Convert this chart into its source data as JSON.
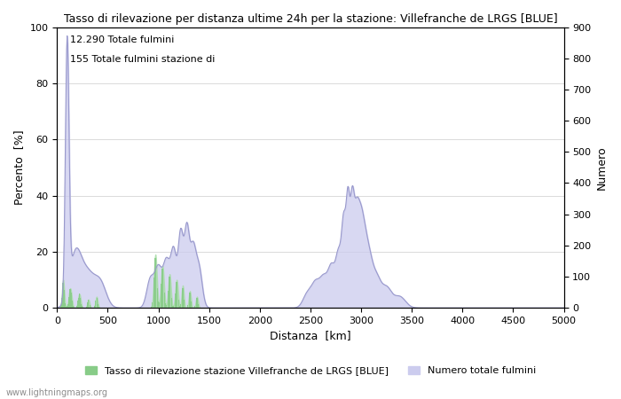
{
  "title": "Tasso di rilevazione per distanza ultime 24h per la stazione: Villefranche de LRGS [BLUE]",
  "xlabel": "Distanza  [km]",
  "ylabel_left": "Percento  [%]",
  "ylabel_right": "Numero",
  "annotation_line1": "12.290 Totale fulmini",
  "annotation_line2": "155 Totale fulmini stazione di",
  "legend_green": "Tasso di rilevazione stazione Villefranche de LRGS [BLUE]",
  "legend_blue": "Numero totale fulmini",
  "watermark": "www.lightningmaps.org",
  "xlim": [
    0,
    5000
  ],
  "ylim_left": [
    0,
    100
  ],
  "ylim_right": [
    0,
    900
  ],
  "xticks": [
    0,
    500,
    1000,
    1500,
    2000,
    2500,
    3000,
    3500,
    4000,
    4500,
    5000
  ],
  "yticks_left": [
    0,
    20,
    40,
    60,
    80,
    100
  ],
  "yticks_right": [
    0,
    100,
    200,
    300,
    400,
    500,
    600,
    700,
    800,
    900
  ],
  "color_line": "#9999cc",
  "color_fill": "#ccccee",
  "color_green_bar": "#88cc88",
  "color_green_fill": "#aaddaa",
  "bg_color": "#ffffff",
  "grid_color": "#cccccc"
}
